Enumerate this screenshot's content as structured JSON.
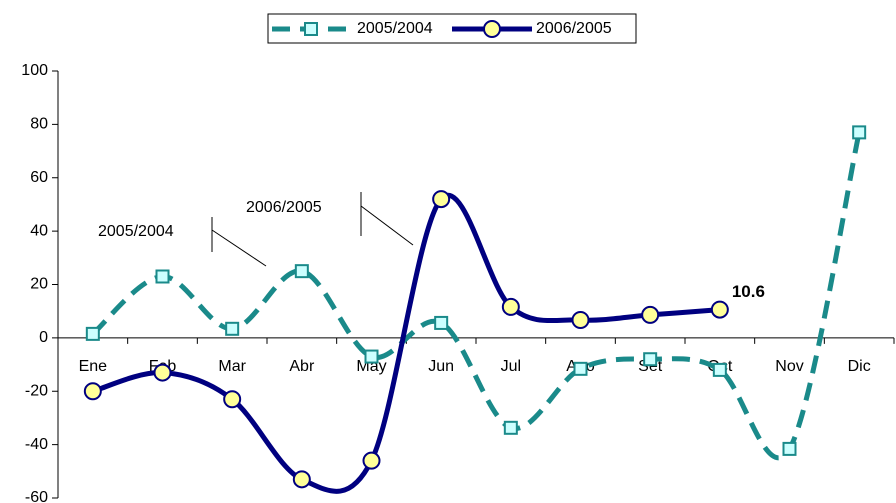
{
  "chart_data": {
    "type": "line",
    "categories": [
      "Ene",
      "Feb",
      "Mar",
      "Abr",
      "May",
      "Jun",
      "Jul",
      "Ago",
      "Set",
      "Oct",
      "Nov",
      "Dic"
    ],
    "series": [
      {
        "name": "2005/2004",
        "color": "#1a8a8a",
        "values": [
          1.5,
          23,
          3.4,
          25,
          -7,
          5.6,
          -33.7,
          -11.6,
          -8,
          -12,
          -41.6,
          77
        ]
      },
      {
        "name": "2006/2005",
        "color": "#000080",
        "values": [
          -20,
          -13,
          -23,
          -53,
          -46,
          52,
          11.6,
          6.7,
          8.6,
          10.6,
          null,
          null
        ]
      }
    ],
    "ylim": [
      -60,
      100
    ],
    "yticks": [
      -60,
      -40,
      -20,
      0,
      20,
      40,
      60,
      80,
      100
    ],
    "legend": "top"
  }
}
